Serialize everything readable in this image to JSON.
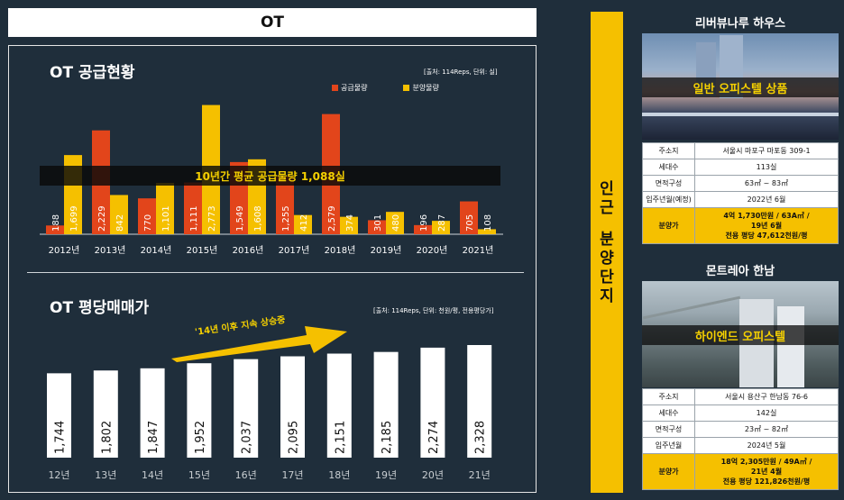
{
  "header": {
    "title": "OT"
  },
  "supply": {
    "title": "OT 공급현황",
    "source": "[출처: 114Reps, 단위: 실]",
    "avg_banner": "10년간 평균 공급물량 1,088실",
    "colors": {
      "supply": "#e2451b",
      "sale": "#f5c000"
    }
  },
  "price": {
    "title": "OT 평당매매가",
    "source": "[출처: 114Reps, 단위: 천원/평, 전용평당가]",
    "trend": "'14년 이후 지속 상승중"
  },
  "chart_data": [
    {
      "type": "bar",
      "categories": [
        "2012년",
        "2013년",
        "2014년",
        "2015년",
        "2016년",
        "2017년",
        "2018년",
        "2019년",
        "2020년",
        "2021년"
      ],
      "series": [
        {
          "name": "공급물량",
          "values": [
            188,
            2229,
            770,
            1111,
            1549,
            1255,
            2579,
            301,
            196,
            705
          ],
          "labels": [
            "188",
            "2,229",
            "770",
            "1,111",
            "1,549",
            "1,255",
            "2,579",
            "301",
            "196",
            "705"
          ]
        },
        {
          "name": "분양물량",
          "values": [
            1699,
            842,
            1101,
            2773,
            1608,
            412,
            374,
            480,
            287,
            108
          ],
          "labels": [
            "1,699",
            "842",
            "1,101",
            "2,773",
            "1,608",
            "412",
            "374",
            "480",
            "287",
            "108"
          ]
        }
      ],
      "ylim": [
        0,
        2900
      ]
    },
    {
      "type": "bar",
      "categories": [
        "12년",
        "13년",
        "14년",
        "15년",
        "16년",
        "17년",
        "18년",
        "19년",
        "20년",
        "21년"
      ],
      "values": [
        1744,
        1802,
        1847,
        1952,
        2037,
        2095,
        2151,
        2185,
        2274,
        2328
      ],
      "labels": [
        "1,744",
        "1,802",
        "1,847",
        "1,952",
        "2,037",
        "2,095",
        "2,151",
        "2,185",
        "2,274",
        "2,328"
      ],
      "ylim": [
        0,
        2500
      ]
    }
  ],
  "vertical": {
    "chars": [
      "인",
      "근",
      "",
      "분",
      "양",
      "단",
      "지"
    ]
  },
  "complex1": {
    "name": "리버뷰나루 하우스",
    "banner": "일반 오피스텔 상품",
    "rows": [
      {
        "k": "주소지",
        "v": "서울시 마포구 마포동 309-1"
      },
      {
        "k": "세대수",
        "v": "113실"
      },
      {
        "k": "면적구성",
        "v": "63㎡ ~ 83㎡"
      },
      {
        "k": "입주년월(예정)",
        "v": "2022년 6월"
      }
    ],
    "price_key": "분양가",
    "price_lines": [
      "4억 1,730만원 / 63A㎡ /",
      "19년 6월",
      "전용 평당 47,612천원/평"
    ]
  },
  "complex2": {
    "name": "몬트레아 한남",
    "banner": "하이엔드 오피스텔",
    "rows": [
      {
        "k": "주소지",
        "v": "서울시 용산구 한남동 76-6"
      },
      {
        "k": "세대수",
        "v": "142실"
      },
      {
        "k": "면적구성",
        "v": "23㎡ ~ 82㎡"
      },
      {
        "k": "입주년월",
        "v": "2024년 5월"
      }
    ],
    "price_key": "분양가",
    "price_lines": [
      "18억 2,305만원 / 49A㎡ /",
      "21년 4월",
      "전용 평당 121,826천원/평"
    ]
  }
}
